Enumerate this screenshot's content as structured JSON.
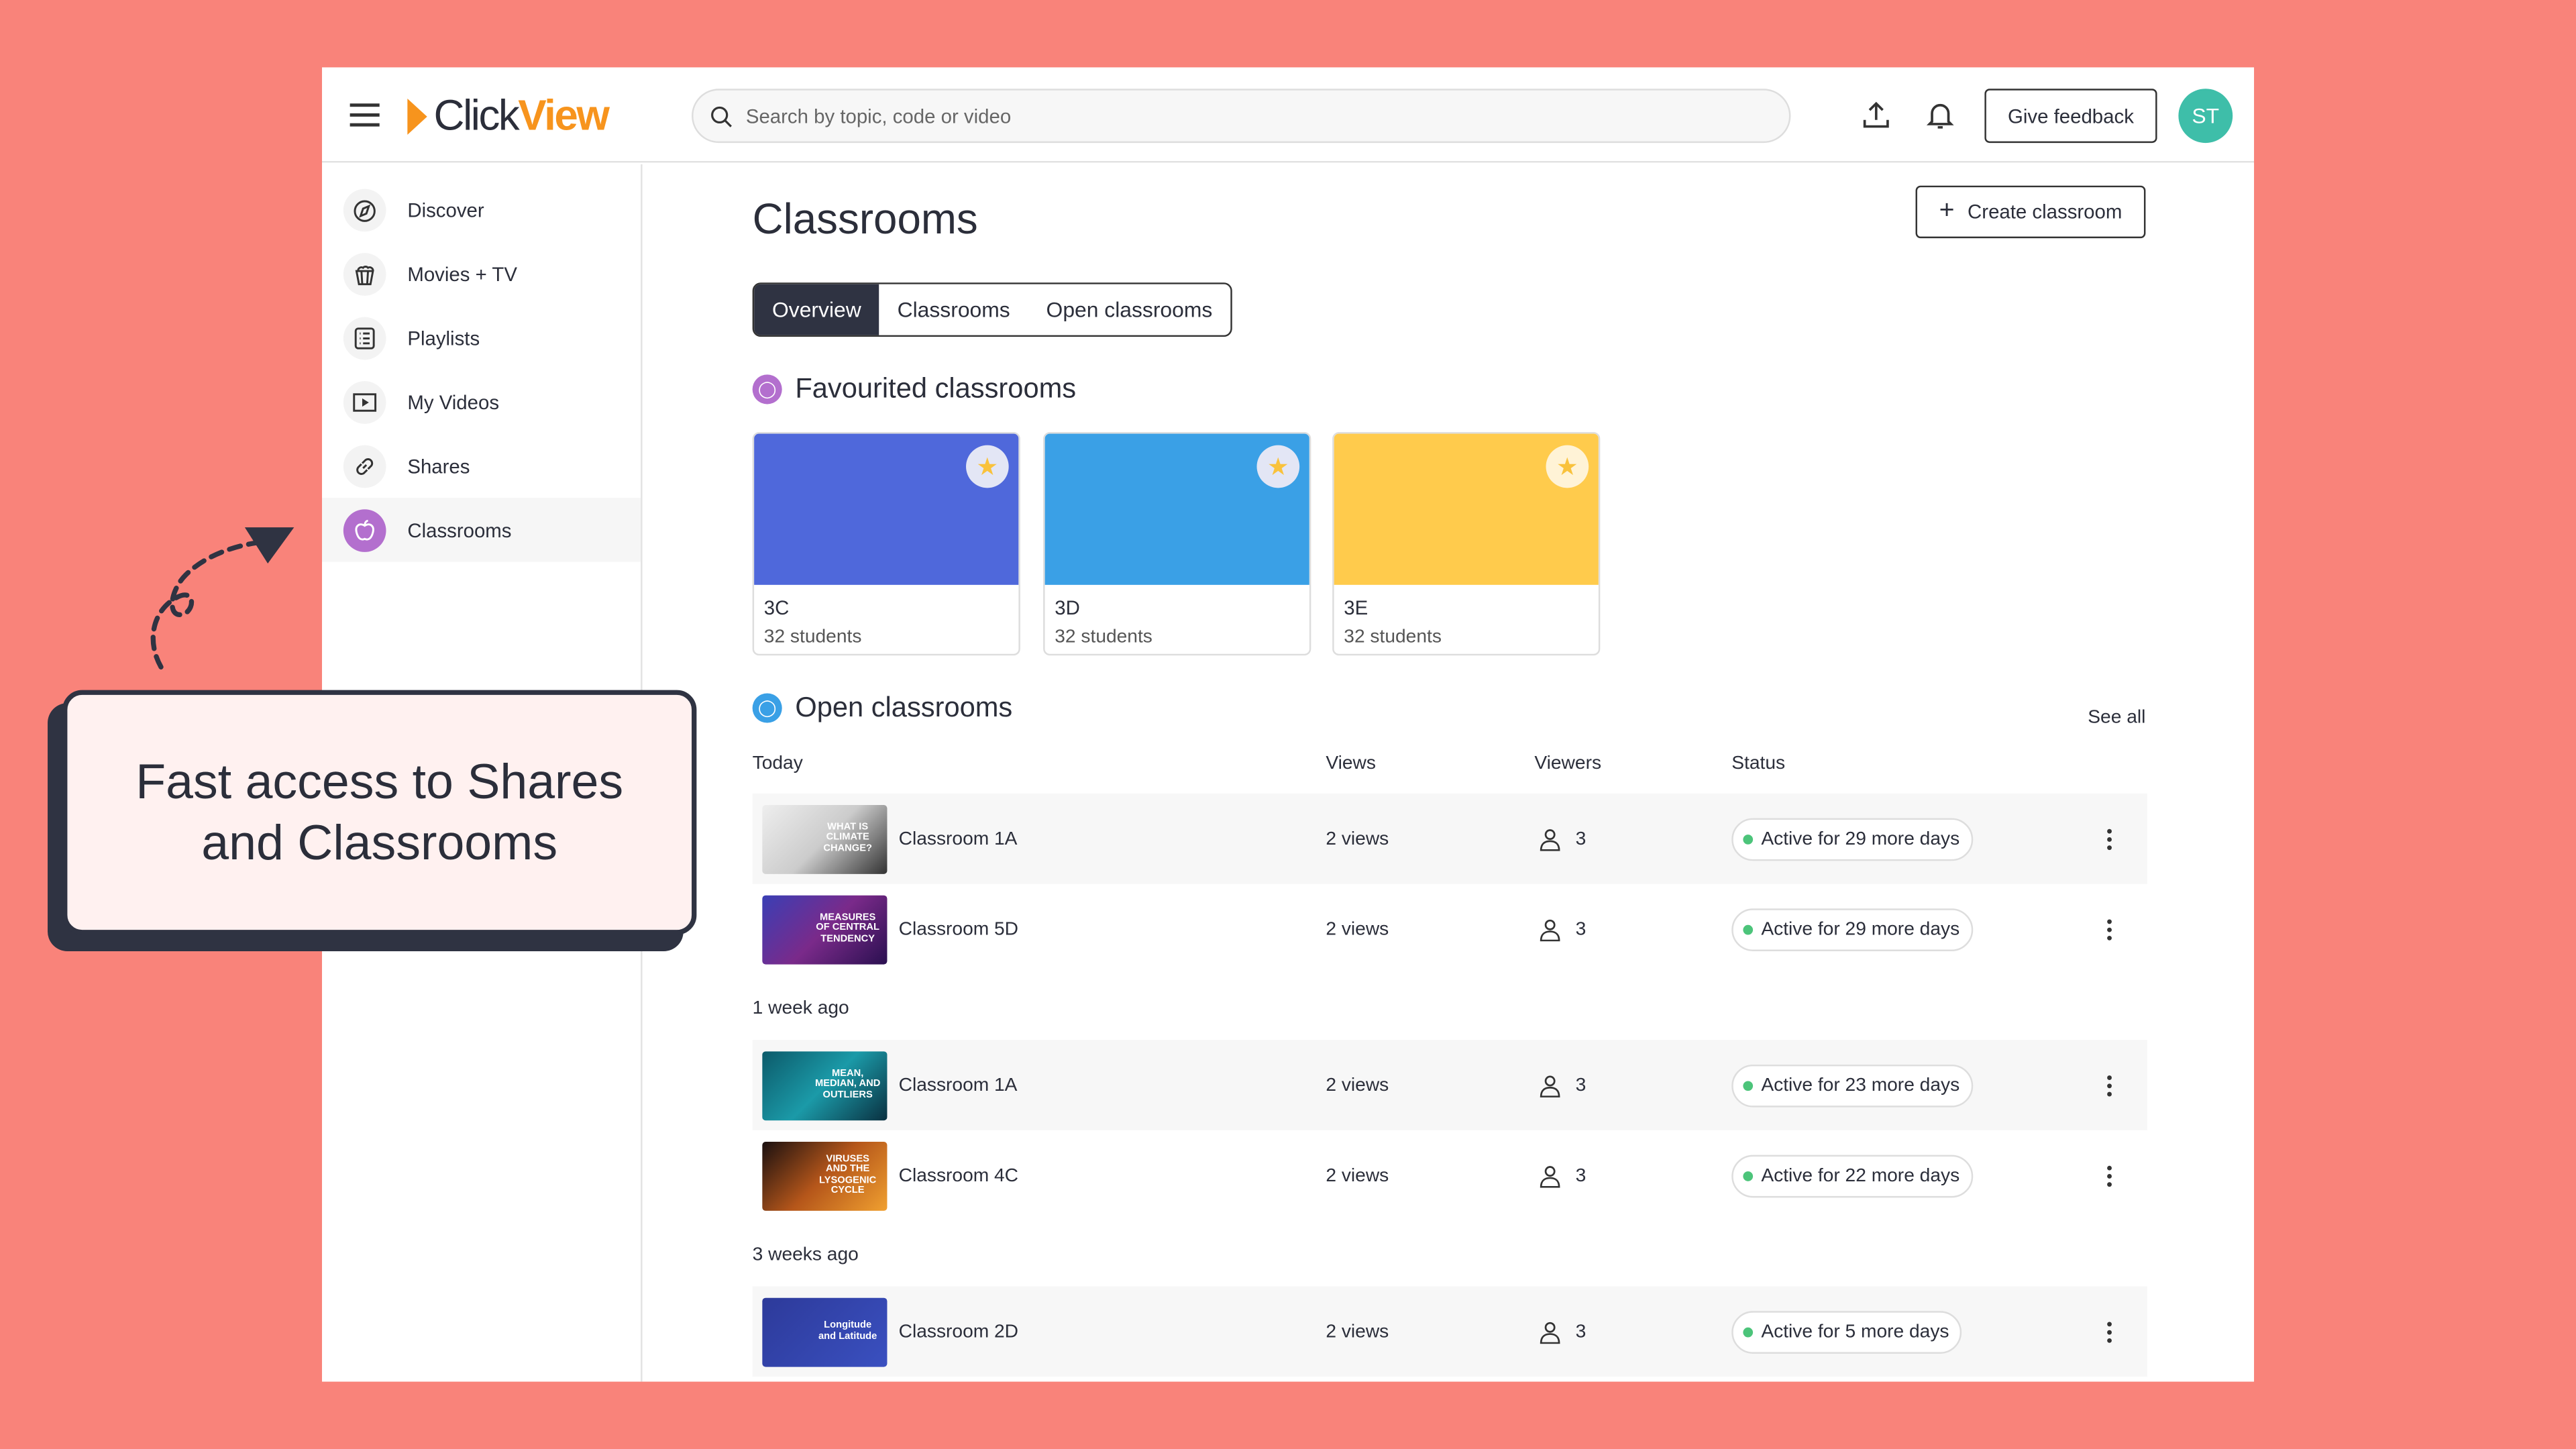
{
  "colors": {
    "background": "#F9837A",
    "brand_orange": "#F7941D",
    "avatar": "#3EBEA9",
    "classrooms_purple": "#B36FCE",
    "open_blue": "#3AA0E6",
    "status_green": "#4CC47A"
  },
  "header": {
    "logo_part1": "Click",
    "logo_part2": "View",
    "search_placeholder": "Search by topic, code or video",
    "feedback_label": "Give feedback",
    "avatar_initials": "ST"
  },
  "sidebar": {
    "items": [
      {
        "label": "Discover",
        "icon": "compass-icon"
      },
      {
        "label": "Movies + TV",
        "icon": "popcorn-icon"
      },
      {
        "label": "Playlists",
        "icon": "list-icon"
      },
      {
        "label": "My Videos",
        "icon": "play-icon"
      },
      {
        "label": "Shares",
        "icon": "link-icon"
      },
      {
        "label": "Classrooms",
        "icon": "apple-icon",
        "active": true
      }
    ]
  },
  "main": {
    "title": "Classrooms",
    "create_label": "Create classroom",
    "tabs": [
      {
        "label": "Overview",
        "selected": true
      },
      {
        "label": "Classrooms"
      },
      {
        "label": "Open classrooms"
      }
    ],
    "favourites_title": "Favourited classrooms",
    "favourites": [
      {
        "name": "3C",
        "students": "32 students",
        "color": "#4F68DB",
        "favourited": true
      },
      {
        "name": "3D",
        "students": "32 students",
        "color": "#3AA0E6",
        "favourited": true
      },
      {
        "name": "3E",
        "students": "32 students",
        "color": "#FFCB4C",
        "favourited": true
      }
    ],
    "open_title": "Open classrooms",
    "see_all": "See all",
    "columns": {
      "views": "Views",
      "viewers": "Viewers",
      "status": "Status"
    },
    "groups": [
      {
        "label": "Today",
        "rows": [
          {
            "thumb_text": "WHAT IS CLIMATE CHANGE?",
            "name": "Classroom 1A",
            "views": "2 views",
            "viewers": "3",
            "status": "Active for 29 more days"
          },
          {
            "thumb_text": "MEASURES OF CENTRAL TENDENCY",
            "name": "Classroom 5D",
            "views": "2 views",
            "viewers": "3",
            "status": "Active for 29 more days"
          }
        ]
      },
      {
        "label": "1 week ago",
        "rows": [
          {
            "thumb_text": "MEAN, MEDIAN, AND OUTLIERS",
            "name": "Classroom 1A",
            "views": "2 views",
            "viewers": "3",
            "status": "Active for 23 more days"
          },
          {
            "thumb_text": "VIRUSES AND THE LYSOGENIC CYCLE",
            "name": "Classroom 4C",
            "views": "2 views",
            "viewers": "3",
            "status": "Active for 22 more days"
          }
        ]
      },
      {
        "label": "3 weeks ago",
        "rows": [
          {
            "thumb_text": "Longitude and Latitude",
            "name": "Classroom 2D",
            "views": "2 views",
            "viewers": "3",
            "status": "Active for 5 more days"
          }
        ]
      }
    ]
  },
  "callout": {
    "text": "Fast access to Shares and Classrooms"
  }
}
